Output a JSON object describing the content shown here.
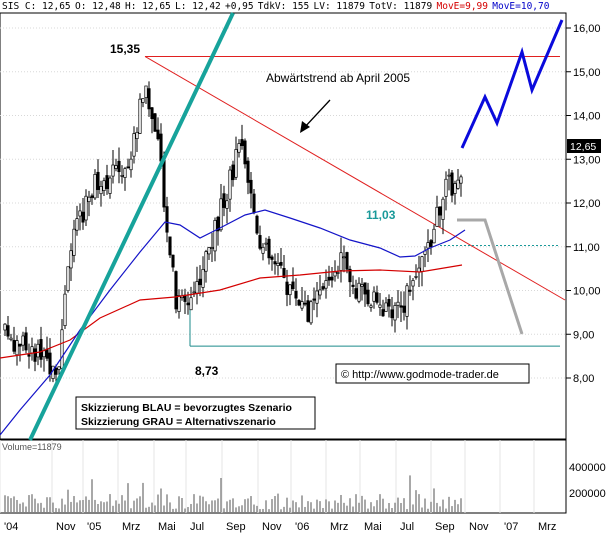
{
  "header": {
    "items": [
      {
        "text": "SIS C: 12,65",
        "color": "#000000"
      },
      {
        "text": "O: 12,48",
        "color": "#000000"
      },
      {
        "text": "H: 12,65",
        "color": "#000000"
      },
      {
        "text": "L: 12,42",
        "color": "#000000"
      },
      {
        "text": "+0,95",
        "color": "#000000"
      },
      {
        "text": "TdkV: 155",
        "color": "#000000"
      },
      {
        "text": "LV: 11879",
        "color": "#000000"
      },
      {
        "text": "TotV: 11879",
        "color": "#000000"
      },
      {
        "text": "MovE=9,99",
        "color": "#d40000"
      },
      {
        "text": "MovE=10,70",
        "color": "#0000c8"
      }
    ]
  },
  "chart_data": {
    "type": "candlestick",
    "x_labels": [
      "'04",
      "Nov",
      "'05",
      "Mrz",
      "Mai",
      "Jul",
      "Sep",
      "Nov",
      "'06",
      "Mrz",
      "Mai",
      "Jul",
      "Sep",
      "Nov",
      "'07",
      "Mrz"
    ],
    "y_ticks": [
      "8,00",
      "9,00",
      "10,00",
      "11,00",
      "12,00",
      "13,00",
      "14,00",
      "15,00",
      "16,00"
    ],
    "ylim": [
      7.0,
      16.3
    ],
    "last_price_label": "12,65",
    "last_price": 12.65,
    "annotations": {
      "high_label": "15,35",
      "high_value": 15.35,
      "low_label": "8,73",
      "low_value": 8.73,
      "level_label": "11,03",
      "level_value": 11.03,
      "trend_text": "Abwärtstrend ab April 2005",
      "copyright": "© http://www.godmode-trader.de",
      "legend_blue": "Skizzierung BLAU = bevorzugtes Szenario",
      "legend_gray": "Skizzierung GRAU = Alternativszenario"
    },
    "volume_panel": {
      "label": "Volume=11879",
      "y_ticks": [
        "400000",
        "200000"
      ],
      "last_volume": 11879
    },
    "colors": {
      "ema_red": "#d40000",
      "ema_blue": "#1414c8",
      "trend_red": "#e02020",
      "support_teal": "#1a8a8a",
      "uptrend_teal": "#17a39b",
      "scenario_blue": "#0a0adc",
      "scenario_gray": "#a8a8a8",
      "level_teal": "#1a9a9a"
    }
  }
}
